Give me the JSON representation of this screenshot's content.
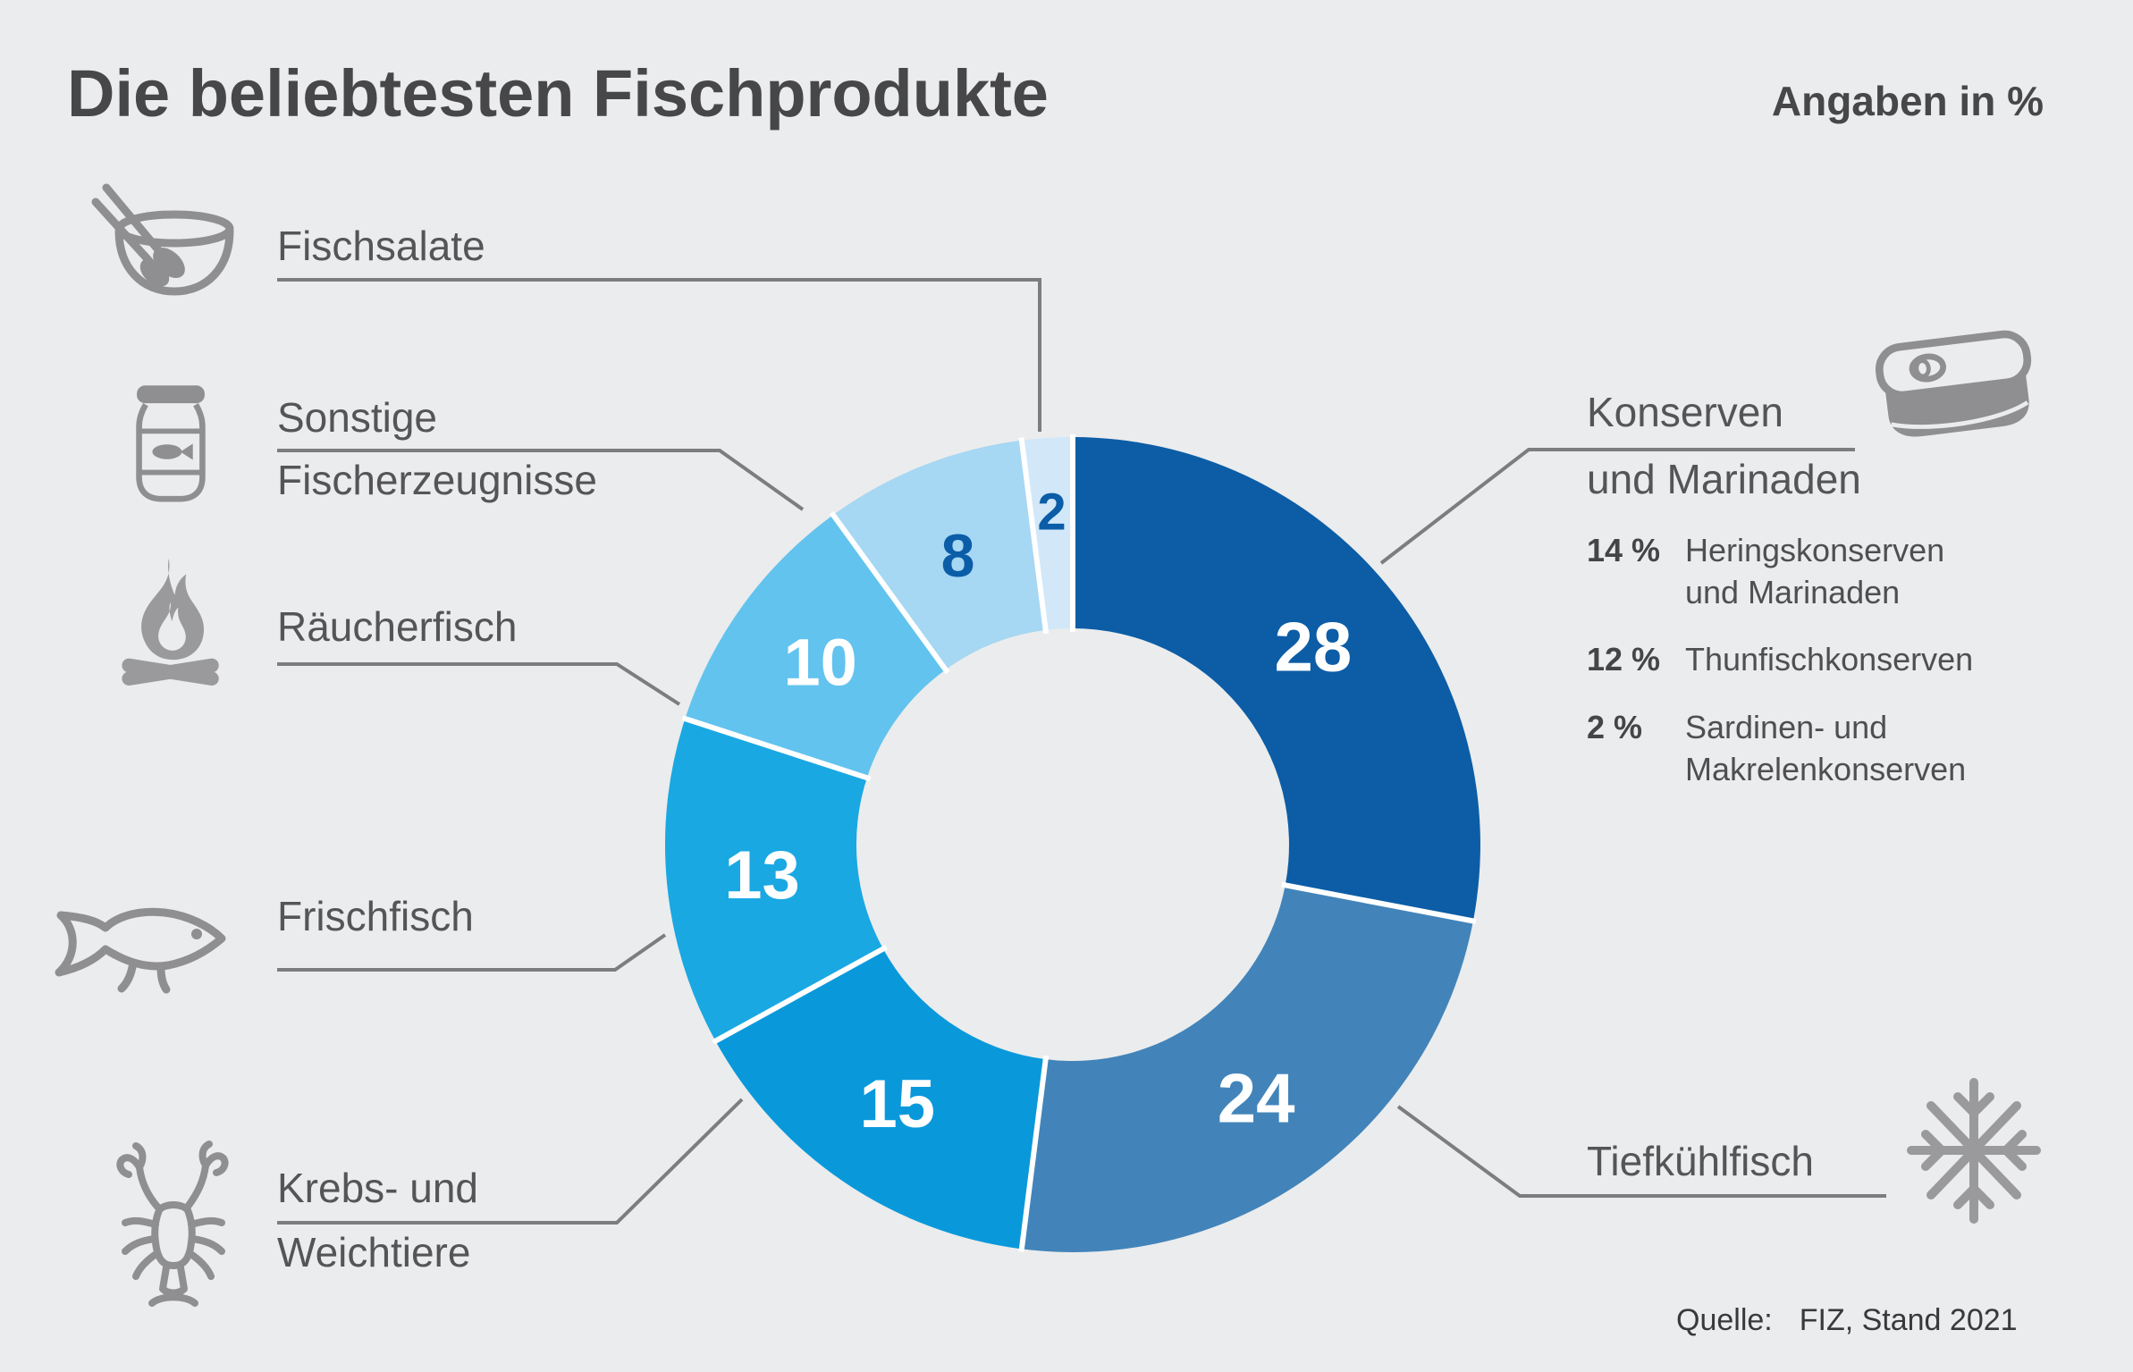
{
  "title": "Die beliebtesten Fischprodukte",
  "unit_note": "Angaben in %",
  "source": {
    "label": "Quelle:",
    "value": "FIZ, Stand 2021"
  },
  "labels": {
    "fischsalate": "Fischsalate",
    "sonstige_line1": "Sonstige",
    "sonstige_line2": "Fischerzeugnisse",
    "raeucherfisch": "Räucherfisch",
    "frischfisch": "Frischfisch",
    "krebs_line1": "Krebs- und",
    "krebs_line2": "Weichtiere",
    "konserven_line1": "Konserven",
    "konserven_line2": "und Marinaden",
    "tiefkuehlfisch": "Tiefkühlfisch"
  },
  "breakdown": {
    "items": [
      {
        "pct": "14 %",
        "line1": "Heringskonserven",
        "line2": "und Marinaden"
      },
      {
        "pct": "12 %",
        "line1": "Thunfischkonserven",
        "line2": ""
      },
      {
        "pct": "2 %",
        "line1": "Sardinen- und",
        "line2": "Makrelenkonserven"
      }
    ]
  },
  "icons": {
    "fischsalate": "salad-bowl-icon",
    "sonstige": "fish-jar-icon",
    "raeucherfisch": "campfire-icon",
    "frischfisch": "fish-icon",
    "krebs": "crayfish-icon",
    "konserven": "tin-can-icon",
    "tiefkuehlfisch": "snowflake-icon"
  },
  "colors": {
    "background": "#ebeced",
    "title_text": "#474749",
    "label_text": "#555557",
    "connector_line": "#7d7d7f",
    "icon_gray": "#8f8f91",
    "accent_dark_blue": "#0b5da7",
    "segment_separator": "#ffffff"
  },
  "chart_data": {
    "type": "pie",
    "subtype": "donut",
    "title": "Die beliebtesten Fischprodukte",
    "unit": "%",
    "direction": "clockwise",
    "start_angle_deg": 0,
    "donut_hole_ratio": 0.53,
    "categories": [
      "Konserven und Marinaden",
      "Tiefkühlfisch",
      "Krebs- und Weichtiere",
      "Frischfisch",
      "Räucherfisch",
      "Sonstige Fischerzeugnisse",
      "Fischsalate"
    ],
    "values": [
      28,
      24,
      15,
      13,
      10,
      8,
      2
    ],
    "colors": [
      "#0c5da6",
      "#4284ba",
      "#0999db",
      "#1aa8e2",
      "#62c3ee",
      "#a6d7f3",
      "#d2e8f8"
    ],
    "value_label_colors": [
      "#ffffff",
      "#ffffff",
      "#ffffff",
      "#ffffff",
      "#ffffff",
      "#0b5da7",
      "#0b5da7"
    ],
    "konserven_breakdown": [
      {
        "value": 14,
        "label": "Heringskonserven und Marinaden"
      },
      {
        "value": 12,
        "label": "Thunfischkonserven"
      },
      {
        "value": 2,
        "label": "Sardinen- und Makrelenkonserven"
      }
    ],
    "source": "Quelle: FIZ, Stand 2021"
  }
}
